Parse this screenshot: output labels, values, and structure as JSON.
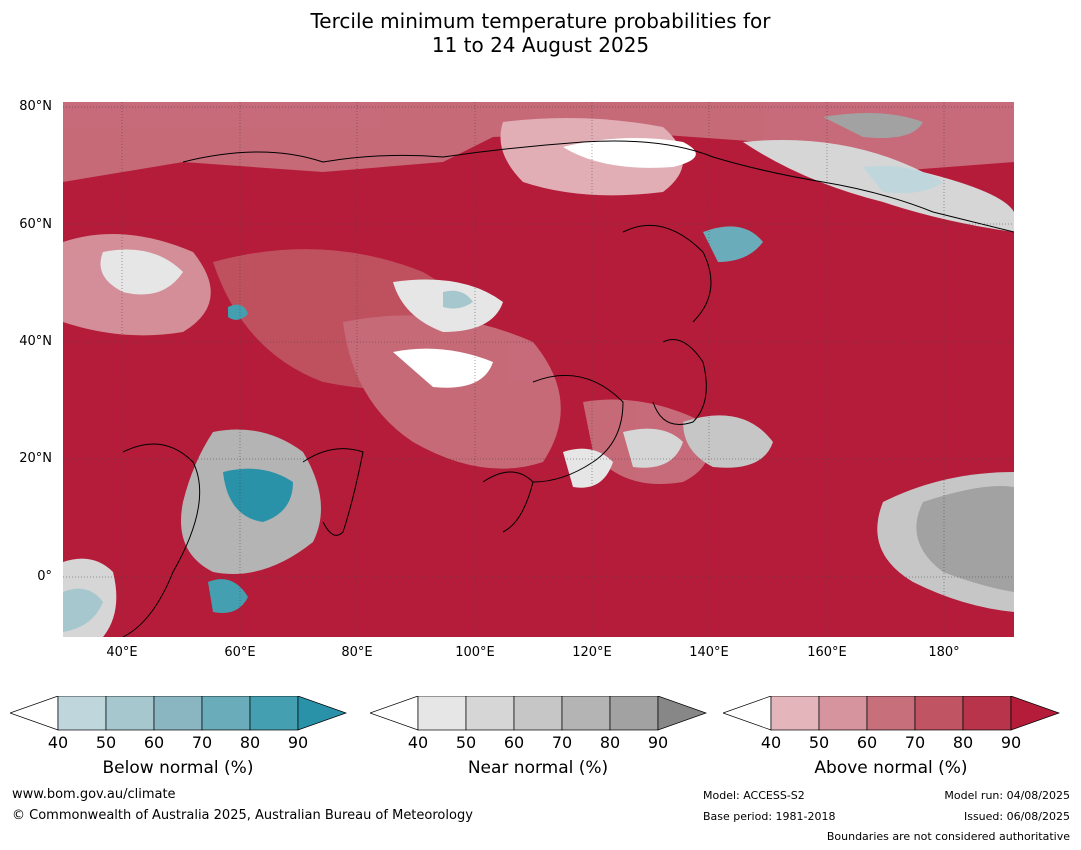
{
  "title": {
    "line1": "Tercile minimum temperature probabilities for",
    "line2": "11 to 24 August 2025"
  },
  "map": {
    "lat_labels": [
      "80°N",
      "60°N",
      "40°N",
      "20°N",
      "0°"
    ],
    "lon_labels": [
      "40°E",
      "60°E",
      "80°E",
      "100°E",
      "120°E",
      "140°E",
      "160°E",
      "180°"
    ],
    "ocean_color": "#b41c39"
  },
  "colorbars": [
    {
      "name": "Below normal (%)",
      "ticks": [
        "40",
        "50",
        "60",
        "70",
        "80",
        "90"
      ],
      "colors": [
        "#ffffff",
        "#c0d6dd",
        "#a6c7cd",
        "#8ab6c2",
        "#6aacb9",
        "#44a0b0",
        "#2a92a8"
      ]
    },
    {
      "name": "Near normal (%)",
      "ticks": [
        "40",
        "50",
        "60",
        "70",
        "80",
        "90"
      ],
      "colors": [
        "#ffffff",
        "#e6e6e6",
        "#d6d6d6",
        "#c6c6c6",
        "#b4b4b4",
        "#a2a2a2",
        "#878787"
      ]
    },
    {
      "name": "Above normal (%)",
      "ticks": [
        "40",
        "50",
        "60",
        "70",
        "80",
        "90"
      ],
      "colors": [
        "#ffffff",
        "#e4b6bc",
        "#d6959e",
        "#c86f7c",
        "#c05462",
        "#b8344a",
        "#b41c39"
      ]
    }
  ],
  "footer": {
    "website": "www.bom.gov.au/climate",
    "copyright": "© Commonwealth of Australia 2025, Australian Bureau of Meteorology",
    "model": "Model: ACCESS-S2",
    "base_period": "Base period: 1981-2018",
    "model_run": "Model run: 04/08/2025",
    "issued": "Issued: 06/08/2025",
    "boundaries": "Boundaries are not considered authoritative"
  }
}
